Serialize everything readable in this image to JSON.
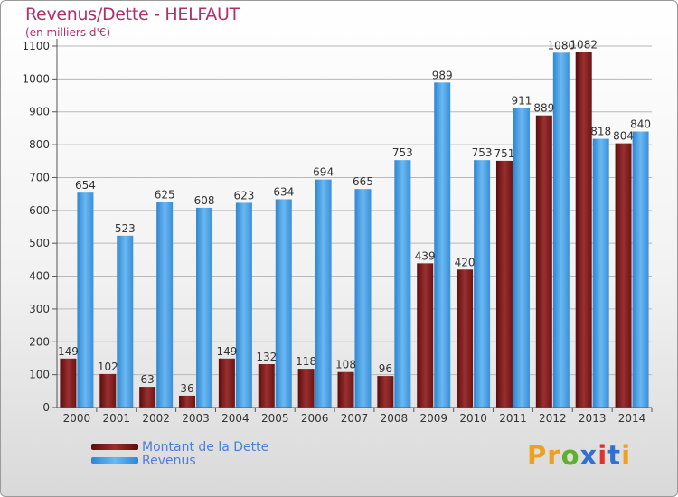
{
  "header": {
    "title": "Revenus/Dette - HELFAUT",
    "subtitle": "(en milliers d'€)"
  },
  "legend": {
    "items": [
      {
        "label": "Montant de la Dette",
        "color": "#7a1c1c"
      },
      {
        "label": "Revenus",
        "color": "#4aa0e6"
      }
    ]
  },
  "logo": {
    "text": "Proxiti",
    "letters": [
      "P",
      "r",
      "o",
      "x",
      "i",
      "t",
      "i"
    ],
    "colors": [
      "#f0a020",
      "#f0a020",
      "#60b030",
      "#3070d0",
      "#e03030",
      "#3070d0",
      "#f0a020"
    ]
  },
  "chart_data": {
    "type": "bar",
    "categories": [
      "2000",
      "2001",
      "2002",
      "2003",
      "2004",
      "2005",
      "2006",
      "2007",
      "2008",
      "2009",
      "2010",
      "2011",
      "2012",
      "2013",
      "2014"
    ],
    "series": [
      {
        "name": "Montant de la Dette",
        "color": "#7a1c1c",
        "values": [
          149,
          102,
          63,
          36,
          149,
          132,
          118,
          108,
          96,
          439,
          420,
          751,
          889,
          1082,
          804
        ]
      },
      {
        "name": "Revenus",
        "color": "#4aa0e6",
        "values": [
          654,
          523,
          625,
          608,
          623,
          634,
          694,
          665,
          753,
          989,
          753,
          911,
          1080,
          818,
          840
        ]
      }
    ],
    "ylim": [
      0,
      1100
    ],
    "yticks": [
      0,
      100,
      200,
      300,
      400,
      500,
      600,
      700,
      800,
      900,
      1000,
      1100
    ],
    "grid": true,
    "legend_position": "bottom-left"
  }
}
